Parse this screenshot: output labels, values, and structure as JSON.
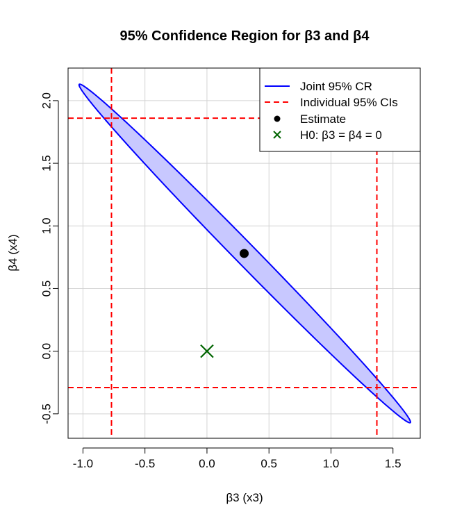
{
  "chart_data": {
    "type": "scatter",
    "title": "95% Confidence Region for β3 and β4",
    "xlabel": "β3 (x3)",
    "ylabel": "β4 (x4)",
    "xlim": [
      -1.12,
      1.72
    ],
    "ylim": [
      -0.695,
      2.26
    ],
    "x_ticks": [
      -1.0,
      -0.5,
      0.0,
      0.5,
      1.0,
      1.5
    ],
    "x_tick_labels": [
      "-1.0",
      "-0.5",
      "0.0",
      "0.5",
      "1.0",
      "1.5"
    ],
    "y_ticks": [
      -0.5,
      0.0,
      0.5,
      1.0,
      1.5,
      2.0
    ],
    "y_tick_labels": [
      "-0.5",
      "0.0",
      "0.5",
      "1.0",
      "1.5",
      "2.0"
    ],
    "grid": true,
    "legend_position": "top-right",
    "colors": {
      "region_stroke": "#0000ff",
      "region_fill": "#c8c8ff",
      "ci_lines": "#ff0000",
      "estimate": "#000000",
      "h0": "#006400",
      "grid": "#d3d3d3"
    },
    "confidence_region": {
      "name": "Joint 95% CR",
      "center": [
        0.3,
        0.78
      ],
      "extreme_points": [
        [
          -1.03,
          2.13
        ],
        [
          1.64,
          -0.57
        ]
      ],
      "minor_half_width": 0.085
    },
    "individual_cis": {
      "name": "Individual 95% CIs",
      "beta3": [
        -0.77,
        1.37
      ],
      "beta4": [
        -0.29,
        1.86
      ]
    },
    "estimate": {
      "name": "Estimate",
      "x": 0.3,
      "y": 0.78
    },
    "null_hypothesis": {
      "name": "H0: β3 = β4 = 0",
      "x": 0.0,
      "y": 0.0
    },
    "legend": [
      "Joint 95% CR",
      "Individual 95% CIs",
      "Estimate",
      "H0: β3 = β4 = 0"
    ]
  }
}
